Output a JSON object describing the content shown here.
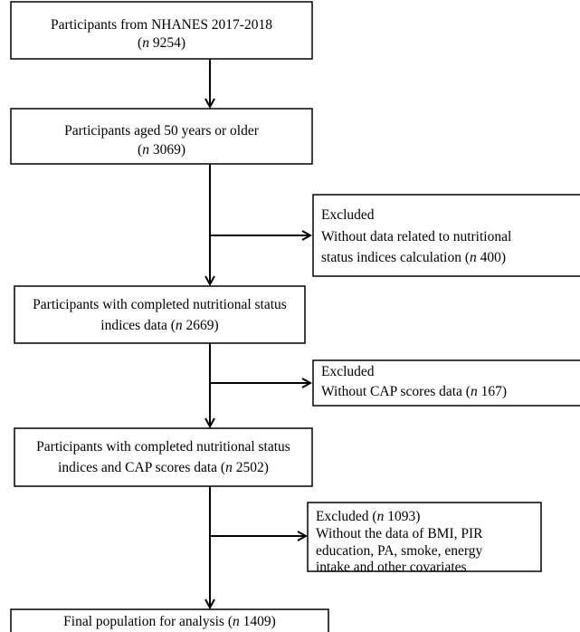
{
  "nodes": [
    {
      "lines": [
        [
          {
            "text": "Participants from NHANES 2017-2018"
          }
        ],
        [
          {
            "text": "("
          },
          {
            "text": "n",
            "italic": true
          },
          {
            "text": " 9254)"
          }
        ]
      ]
    },
    {
      "lines": [
        [
          {
            "text": "Participants aged 50 years or older"
          }
        ],
        [
          {
            "text": "("
          },
          {
            "text": "n",
            "italic": true
          },
          {
            "text": " 3069)"
          }
        ]
      ]
    },
    {
      "lines": [
        [
          {
            "text": "Participants with completed nutritional status"
          }
        ],
        [
          {
            "text": "indices data ("
          },
          {
            "text": "n",
            "italic": true
          },
          {
            "text": " 2669)"
          }
        ]
      ]
    },
    {
      "lines": [
        [
          {
            "text": "Participants with completed nutritional status"
          }
        ],
        [
          {
            "text": "indices and CAP scores data ("
          },
          {
            "text": "n",
            "italic": true
          },
          {
            "text": " 2502)"
          }
        ]
      ]
    },
    {
      "lines": [
        [
          {
            "text": "Final population for analysis ("
          },
          {
            "text": "n",
            "italic": true
          },
          {
            "text": " 1409)"
          }
        ]
      ]
    }
  ],
  "exclusions": [
    {
      "lines": [
        [
          {
            "text": "Excluded"
          }
        ],
        [
          {
            "text": "Without data related to nutritional"
          }
        ],
        [
          {
            "text": "status indices calculation ("
          },
          {
            "text": "n",
            "italic": true
          },
          {
            "text": " 400)"
          }
        ]
      ]
    },
    {
      "lines": [
        [
          {
            "text": "Excluded"
          }
        ],
        [
          {
            "text": "Without CAP scores data ("
          },
          {
            "text": "n",
            "italic": true
          },
          {
            "text": " 167)"
          }
        ]
      ]
    },
    {
      "lines": [
        [
          {
            "text": "Excluded ("
          },
          {
            "text": "n",
            "italic": true
          },
          {
            "text": " 1093)"
          }
        ],
        [
          {
            "text": "Without the data of BMI, PIR"
          }
        ],
        [
          {
            "text": "education, PA, smoke, energy"
          }
        ],
        [
          {
            "text": "intake and other covariates"
          }
        ]
      ]
    }
  ]
}
